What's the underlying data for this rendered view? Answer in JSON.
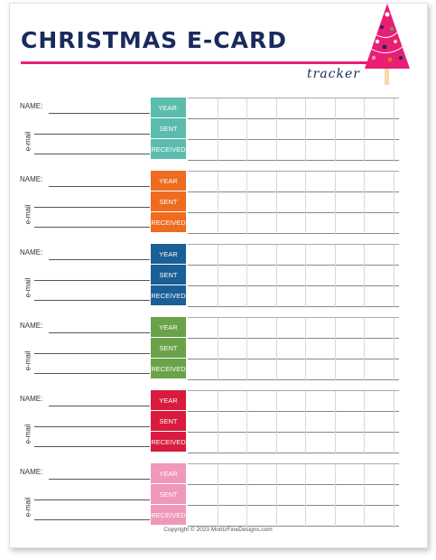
{
  "title": "CHRISTMAS E-CARD",
  "subtitle": "tracker",
  "labels": {
    "name": "NAME:",
    "email": "e-mail"
  },
  "blocks": [
    {
      "year": "YEAR:",
      "sent": "SENT",
      "received": "RECEIVED",
      "color": "#5bbcad"
    },
    {
      "year": "YEAR",
      "sent": "SENT",
      "received": "RECEIVED",
      "color": "#ee6b1f"
    },
    {
      "year": "YEAR",
      "sent": "SENT",
      "received": "RECEIVED",
      "color": "#1a5f96"
    },
    {
      "year": "YEAR",
      "sent": "SENT",
      "received": "RECEIVED",
      "color": "#6aa24a"
    },
    {
      "year": "YEAR",
      "sent": "SENT",
      "received": "RECEIVED",
      "color": "#d81b3e"
    },
    {
      "year": "YEAR",
      "sent": "SENT",
      "received": "RECEIVED",
      "color": "#f098ba"
    }
  ],
  "copyright": "Copyright © 2023 MoritzFineDesigns.com",
  "colors": {
    "navy": "#1a2a5e",
    "pink": "#e91e74"
  }
}
